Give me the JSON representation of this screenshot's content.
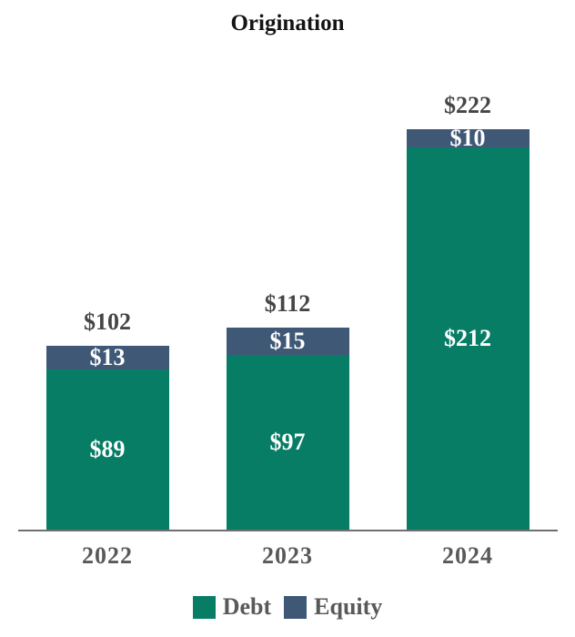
{
  "title": "Origination",
  "legend": {
    "items": [
      {
        "label": "Debt",
        "color": "#087d66"
      },
      {
        "label": "Equity",
        "color": "#3e5876"
      }
    ]
  },
  "chart_data": {
    "type": "bar",
    "stacked": true,
    "title": "Origination",
    "categories": [
      "2022",
      "2023",
      "2024"
    ],
    "series": [
      {
        "name": "Debt",
        "color": "#087d66",
        "values": [
          89,
          97,
          212
        ],
        "labels": [
          "$89",
          "$97",
          "$212"
        ]
      },
      {
        "name": "Equity",
        "color": "#3e5876",
        "values": [
          13,
          15,
          10
        ],
        "labels": [
          "$13",
          "$15",
          "$10"
        ]
      }
    ],
    "totals": [
      102,
      112,
      222
    ],
    "total_labels": [
      "$102",
      "$112",
      "$222"
    ],
    "unit": "$",
    "ylim": [
      0,
      240
    ],
    "grid": false,
    "legend_position": "bottom",
    "value_label_color": "#ffffff",
    "total_label_color": "#454545",
    "category_label_color": "#595959",
    "axis_line_color": "#6f6f6f",
    "background_color": "#ffffff"
  }
}
